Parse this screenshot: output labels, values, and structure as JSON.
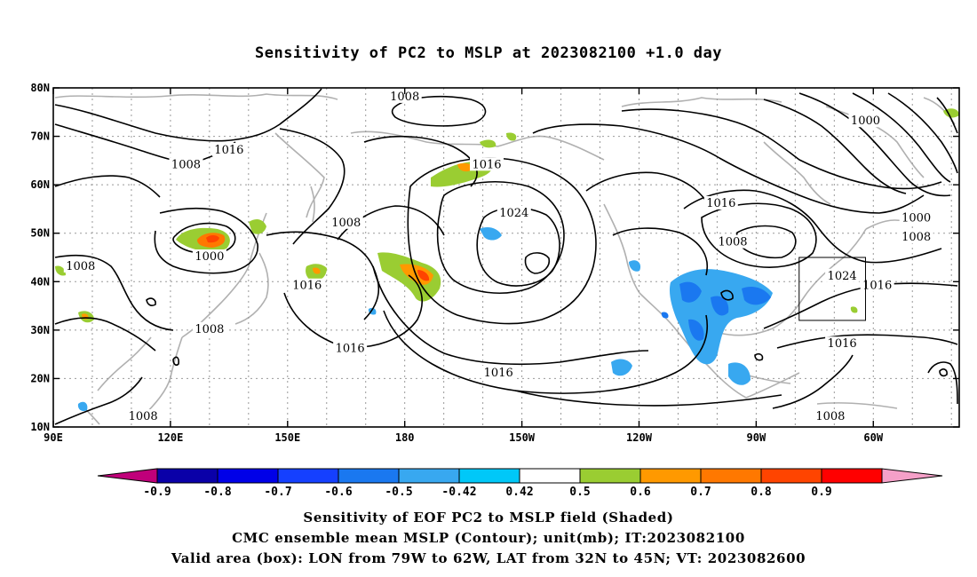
{
  "title": "Sensitivity of PC2 to MSLP at 2023082100 +1.0 day",
  "map": {
    "lat_labels": [
      "80N",
      "70N",
      "60N",
      "50N",
      "40N",
      "30N",
      "20N",
      "10N"
    ],
    "lon_labels": [
      "90E",
      "120E",
      "150E",
      "180",
      "150W",
      "120W",
      "90W",
      "60W"
    ],
    "contour_labels": [
      {
        "text": "1008",
        "lon": 180,
        "lat": 78
      },
      {
        "text": "1016",
        "lon": 135,
        "lat": 67
      },
      {
        "text": "1008",
        "lon": 124,
        "lat": 64
      },
      {
        "text": "1000",
        "lon": 298,
        "lat": 73
      },
      {
        "text": "1016",
        "lon": 201,
        "lat": 64
      },
      {
        "text": "1016",
        "lon": 261,
        "lat": 56
      },
      {
        "text": "1024",
        "lon": 208,
        "lat": 54
      },
      {
        "text": "1008",
        "lon": 165,
        "lat": 52
      },
      {
        "text": "1008",
        "lon": 264,
        "lat": 48
      },
      {
        "text": "1000",
        "lon": 130,
        "lat": 45
      },
      {
        "text": "1008",
        "lon": 97,
        "lat": 43
      },
      {
        "text": "1016",
        "lon": 155,
        "lat": 39
      },
      {
        "text": "1024",
        "lon": 292,
        "lat": 41
      },
      {
        "text": "1016",
        "lon": 301,
        "lat": 39
      },
      {
        "text": "1000",
        "lon": 311,
        "lat": 53
      },
      {
        "text": "1008",
        "lon": 311,
        "lat": 49
      },
      {
        "text": "1008",
        "lon": 130,
        "lat": 30
      },
      {
        "text": "1016",
        "lon": 166,
        "lat": 26
      },
      {
        "text": "1016",
        "lon": 204,
        "lat": 21
      },
      {
        "text": "1016",
        "lon": 292,
        "lat": 27
      },
      {
        "text": "1008",
        "lon": 113,
        "lat": 12
      },
      {
        "text": "1008",
        "lon": 289,
        "lat": 12
      }
    ],
    "valid_box": {
      "lon_west": 281,
      "lon_east": 298,
      "lat_south": 32,
      "lat_north": 45
    }
  },
  "colorbar": {
    "labels": [
      "-0.9",
      "-0.8",
      "-0.7",
      "-0.6",
      "-0.5",
      "-0.42",
      "0.42",
      "0.5",
      "0.6",
      "0.7",
      "0.8",
      "0.9"
    ],
    "colors": [
      "#c0007a",
      "#0a00a8",
      "#0000e8",
      "#1540ff",
      "#1a78f0",
      "#38a8f0",
      "#00c8f8",
      "#ffffff",
      "#9acd32",
      "#ff9900",
      "#ff7800",
      "#ff4400",
      "#ff0000",
      "#f5a0c8"
    ]
  },
  "footer": {
    "line1": "Sensitivity of EOF PC2 to MSLP field (Shaded)",
    "line2": "CMC ensemble mean MSLP (Contour); unit(mb); IT:2023082100",
    "line3": "Valid area (box): LON from 79W to 62W, LAT from 32N to 45N; VT: 2023082600"
  }
}
